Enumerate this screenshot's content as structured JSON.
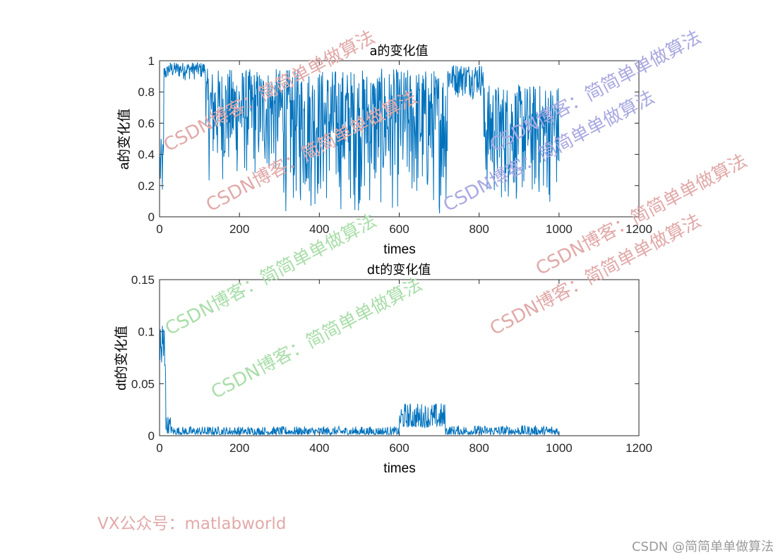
{
  "chart_data": [
    {
      "type": "line",
      "title": "a的变化值",
      "xlabel": "times",
      "ylabel": "a的变化值",
      "xlim": [
        0,
        1200
      ],
      "ylim": [
        0,
        1
      ],
      "xticks": [
        "0",
        "200",
        "400",
        "600",
        "800",
        "1000",
        "1200"
      ],
      "yticks": [
        "0",
        "0.2",
        "0.4",
        "0.6",
        "0.8",
        "1"
      ],
      "color": "#0072bd",
      "x_range": [
        1,
        1000
      ],
      "segments": [
        {
          "x": [
            1,
            10
          ],
          "min": 0.0,
          "max": 0.5
        },
        {
          "x": [
            10,
            20
          ],
          "min": 0.85,
          "max": 0.97
        },
        {
          "x": [
            20,
            115
          ],
          "min": 0.87,
          "max": 0.99
        },
        {
          "x": [
            115,
            310
          ],
          "min": 0.2,
          "max": 0.95
        },
        {
          "x": [
            310,
            520
          ],
          "min": 0.0,
          "max": 0.95
        },
        {
          "x": [
            520,
            720
          ],
          "min": 0.0,
          "max": 0.95
        },
        {
          "x": [
            720,
            810
          ],
          "min": 0.75,
          "max": 0.98
        },
        {
          "x": [
            810,
            1000
          ],
          "min": 0.05,
          "max": 0.85
        }
      ]
    },
    {
      "type": "line",
      "title": "dt的变化值",
      "xlabel": "times",
      "ylabel": "dt的变化值",
      "xlim": [
        0,
        1200
      ],
      "ylim": [
        0,
        0.15
      ],
      "xticks": [
        "0",
        "200",
        "400",
        "600",
        "800",
        "1000",
        "1200"
      ],
      "yticks": [
        "0",
        "0.05",
        "0.1",
        "0.15"
      ],
      "color": "#0072bd",
      "x_range": [
        1,
        1000
      ],
      "segments": [
        {
          "x": [
            1,
            15
          ],
          "min": 0.06,
          "max": 0.122
        },
        {
          "x": [
            15,
            30
          ],
          "min": 0.002,
          "max": 0.02
        },
        {
          "x": [
            30,
            600
          ],
          "min": 0.001,
          "max": 0.009
        },
        {
          "x": [
            600,
            715
          ],
          "min": 0.008,
          "max": 0.032
        },
        {
          "x": [
            715,
            1000
          ],
          "min": 0.001,
          "max": 0.01
        }
      ]
    }
  ],
  "watermarks": [
    {
      "text": "CSDN博客：简简单单做算法",
      "color": "#e2a9a9"
    },
    {
      "text": "CSDN博客：简简单单做算法",
      "color": "#e2a9a9"
    },
    {
      "text": "CSDN博客：简简单单做算法",
      "color": "#a9a9e2"
    },
    {
      "text": "CSDN博客：简简单单做算法",
      "color": "#a9a9e2"
    },
    {
      "text": "CSDN博客：简简单单做算法",
      "color": "#e2a9a9"
    },
    {
      "text": "CSDN博客：简简单单做算法",
      "color": "#a9dea9"
    },
    {
      "text": "CSDN博客：简简单单做算法",
      "color": "#a9dea9"
    },
    {
      "text": "CSDN博客：简简单单做算法",
      "color": "#e2a9a9"
    }
  ],
  "vx_text": "VX公众号：matlabworld",
  "footer_text": "CSDN @简简单单做算法"
}
